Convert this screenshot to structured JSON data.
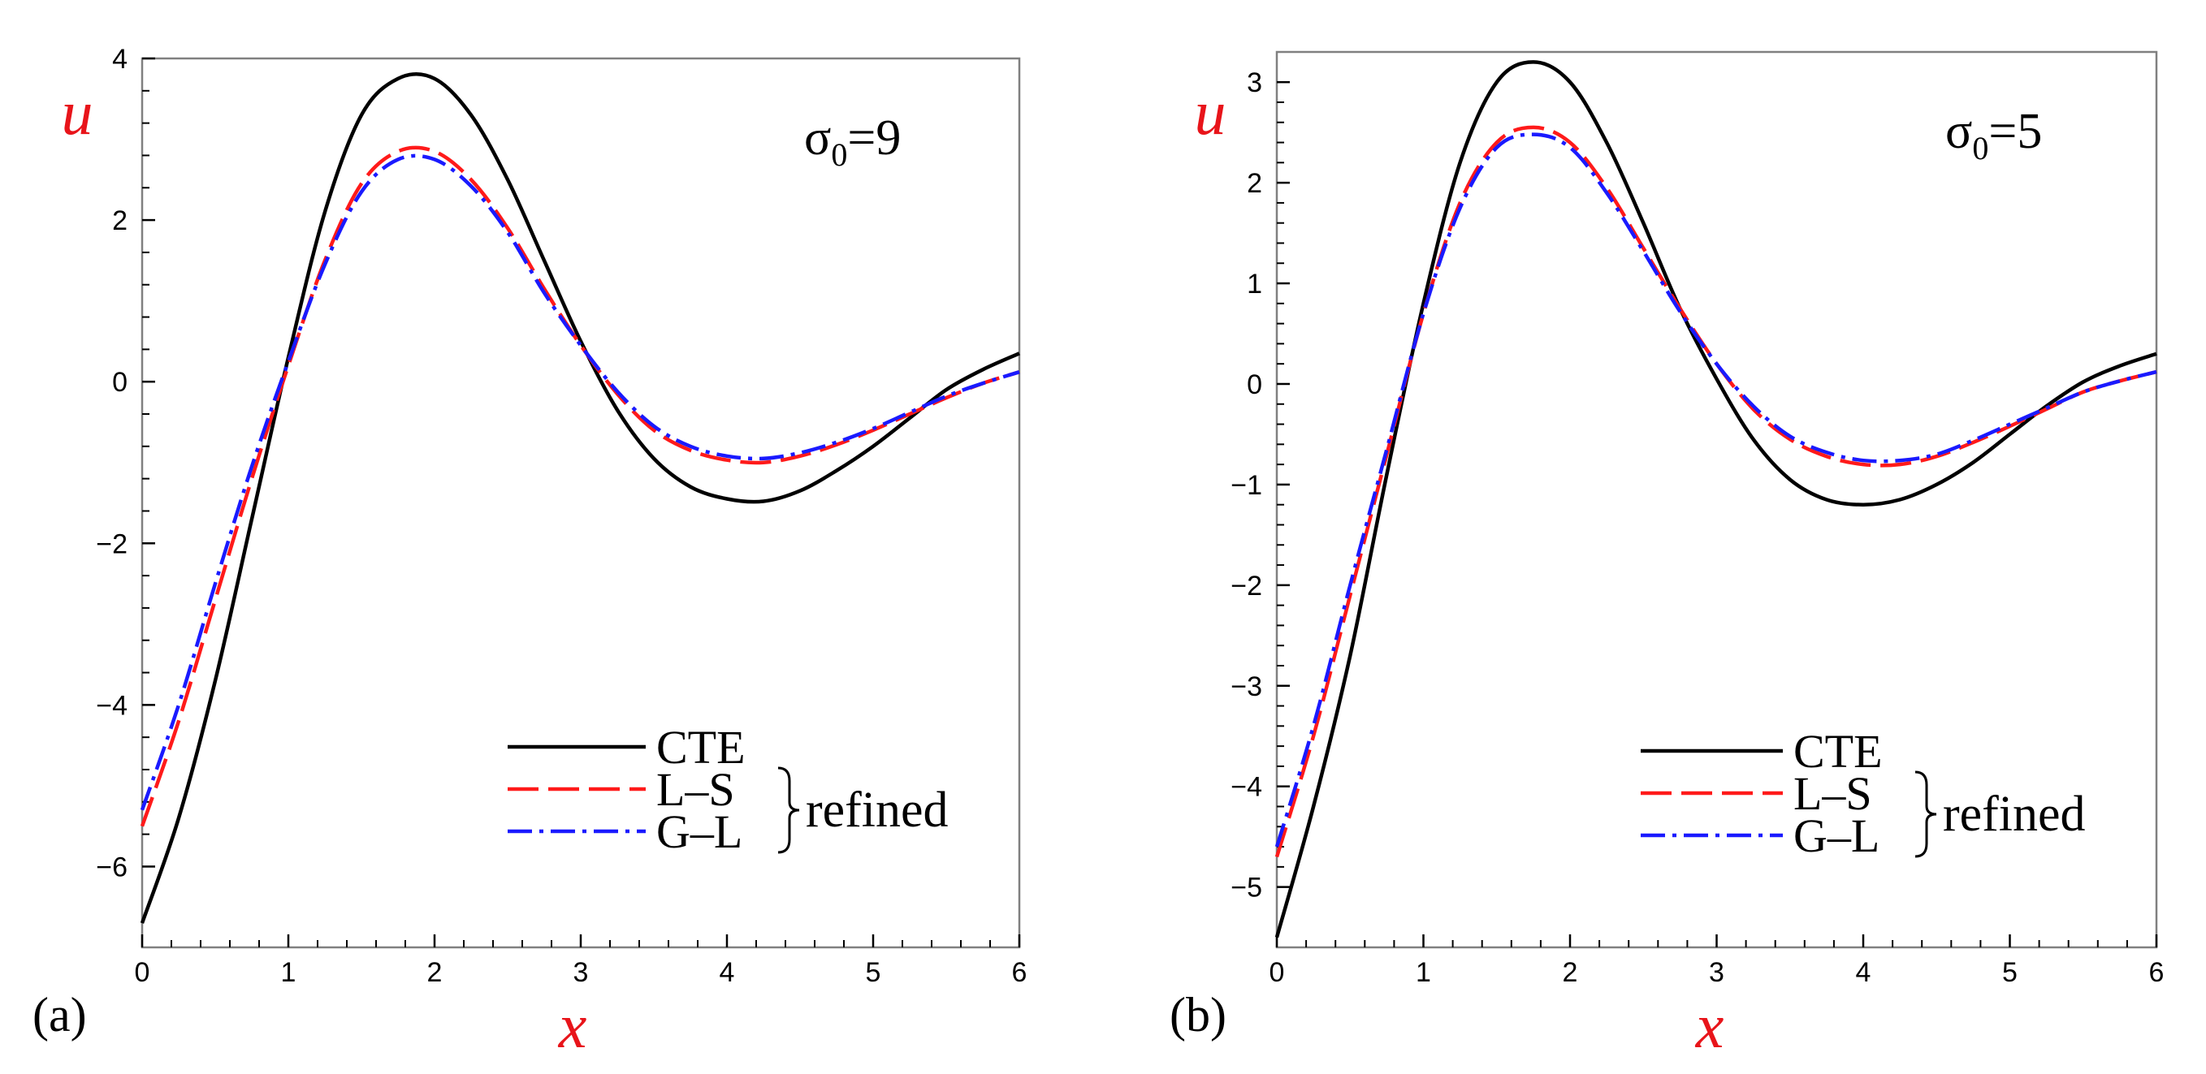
{
  "chart_data": [
    {
      "type": "line",
      "panel_label": "(a)",
      "annotation": {
        "symbol": "σ",
        "subscript": "0",
        "rest": "=9"
      },
      "xlabel": "x",
      "ylabel": "u",
      "xlim": [
        0,
        6
      ],
      "ylim": [
        -7,
        4
      ],
      "xticks": [
        0,
        1,
        2,
        3,
        4,
        5,
        6
      ],
      "yticks": [
        -6,
        -4,
        -2,
        0,
        2,
        4
      ],
      "ytick_labels": [
        "−6",
        "−4",
        "−2",
        "0",
        "2",
        "4"
      ],
      "legend_position": "bottom-right",
      "legend_group_label": "refined",
      "series": [
        {
          "name": "CTE",
          "color": "#000000",
          "style": "solid",
          "x": [
            0,
            0.25,
            0.5,
            0.75,
            1,
            1.25,
            1.5,
            1.75,
            2,
            2.25,
            2.5,
            2.75,
            3,
            3.25,
            3.5,
            3.75,
            4,
            4.25,
            4.5,
            4.75,
            5,
            5.25,
            5.5,
            5.75,
            6
          ],
          "y": [
            -6.7,
            -5.4,
            -3.7,
            -1.7,
            0.3,
            2.1,
            3.3,
            3.75,
            3.75,
            3.3,
            2.5,
            1.5,
            0.5,
            -0.35,
            -0.95,
            -1.3,
            -1.45,
            -1.48,
            -1.35,
            -1.1,
            -0.8,
            -0.45,
            -0.1,
            0.15,
            0.35
          ]
        },
        {
          "name": "L–S",
          "color": "#ff1a1a",
          "style": "dashed",
          "x": [
            0,
            0.25,
            0.5,
            0.75,
            1,
            1.25,
            1.5,
            1.75,
            2,
            2.25,
            2.5,
            2.75,
            3,
            3.25,
            3.5,
            3.75,
            4,
            4.25,
            4.5,
            4.75,
            5,
            5.25,
            5.5,
            5.75,
            6
          ],
          "y": [
            -5.5,
            -4.2,
            -2.7,
            -1.2,
            0.2,
            1.5,
            2.45,
            2.85,
            2.85,
            2.5,
            1.9,
            1.15,
            0.45,
            -0.15,
            -0.6,
            -0.85,
            -0.97,
            -1.0,
            -0.92,
            -0.78,
            -0.6,
            -0.4,
            -0.2,
            -0.02,
            0.12
          ]
        },
        {
          "name": "G–L",
          "color": "#1a1aff",
          "style": "dashdot",
          "x": [
            0,
            0.25,
            0.5,
            0.75,
            1,
            1.25,
            1.5,
            1.75,
            2,
            2.25,
            2.5,
            2.75,
            3,
            3.25,
            3.5,
            3.75,
            4,
            4.25,
            4.5,
            4.75,
            5,
            5.25,
            5.5,
            5.75,
            6
          ],
          "y": [
            -5.3,
            -4.0,
            -2.5,
            -1.05,
            0.25,
            1.45,
            2.35,
            2.75,
            2.75,
            2.42,
            1.85,
            1.1,
            0.45,
            -0.12,
            -0.55,
            -0.8,
            -0.92,
            -0.95,
            -0.88,
            -0.75,
            -0.58,
            -0.38,
            -0.18,
            -0.02,
            0.12
          ]
        }
      ]
    },
    {
      "type": "line",
      "panel_label": "(b)",
      "annotation": {
        "symbol": "σ",
        "subscript": "0",
        "rest": "=5"
      },
      "xlabel": "x",
      "ylabel": "u",
      "xlim": [
        0,
        6
      ],
      "ylim": [
        -5.6,
        3.3
      ],
      "xticks": [
        0,
        1,
        2,
        3,
        4,
        5,
        6
      ],
      "yticks": [
        -5,
        -4,
        -3,
        -2,
        -1,
        0,
        1,
        2,
        3
      ],
      "ytick_labels": [
        "−5",
        "−4",
        "−3",
        "−2",
        "−1",
        "0",
        "1",
        "2",
        "3"
      ],
      "legend_position": "bottom-right",
      "legend_group_label": "refined",
      "series": [
        {
          "name": "CTE",
          "color": "#000000",
          "style": "solid",
          "x": [
            0,
            0.25,
            0.5,
            0.75,
            1,
            1.25,
            1.5,
            1.75,
            2,
            2.25,
            2.5,
            2.75,
            3,
            3.25,
            3.5,
            3.75,
            4,
            4.25,
            4.5,
            4.75,
            5,
            5.25,
            5.5,
            5.75,
            6
          ],
          "y": [
            -5.5,
            -4.2,
            -2.7,
            -0.9,
            0.8,
            2.2,
            3.0,
            3.2,
            3.0,
            2.4,
            1.6,
            0.75,
            0.05,
            -0.55,
            -0.95,
            -1.15,
            -1.2,
            -1.15,
            -1.0,
            -0.78,
            -0.5,
            -0.22,
            0.02,
            0.18,
            0.3
          ]
        },
        {
          "name": "L–S",
          "color": "#ff1a1a",
          "style": "dashed",
          "x": [
            0,
            0.25,
            0.5,
            0.75,
            1,
            1.25,
            1.5,
            1.75,
            2,
            2.25,
            2.5,
            2.75,
            3,
            3.25,
            3.5,
            3.75,
            4,
            4.25,
            4.5,
            4.75,
            5,
            5.25,
            5.5,
            5.75,
            6
          ],
          "y": [
            -4.7,
            -3.5,
            -2.1,
            -0.7,
            0.7,
            1.8,
            2.4,
            2.55,
            2.4,
            1.95,
            1.35,
            0.75,
            0.2,
            -0.25,
            -0.55,
            -0.72,
            -0.8,
            -0.8,
            -0.72,
            -0.58,
            -0.42,
            -0.25,
            -0.08,
            0.03,
            0.12
          ]
        },
        {
          "name": "G–L",
          "color": "#1a1aff",
          "style": "dashdot",
          "x": [
            0,
            0.25,
            0.5,
            0.75,
            1,
            1.25,
            1.5,
            1.75,
            2,
            2.25,
            2.5,
            2.75,
            3,
            3.25,
            3.5,
            3.75,
            4,
            4.25,
            4.5,
            4.75,
            5,
            5.25,
            5.5,
            5.75,
            6
          ],
          "y": [
            -4.6,
            -3.4,
            -2.0,
            -0.65,
            0.7,
            1.75,
            2.35,
            2.48,
            2.35,
            1.9,
            1.32,
            0.72,
            0.2,
            -0.22,
            -0.52,
            -0.68,
            -0.76,
            -0.76,
            -0.7,
            -0.56,
            -0.4,
            -0.24,
            -0.08,
            0.03,
            0.12
          ]
        }
      ]
    }
  ]
}
